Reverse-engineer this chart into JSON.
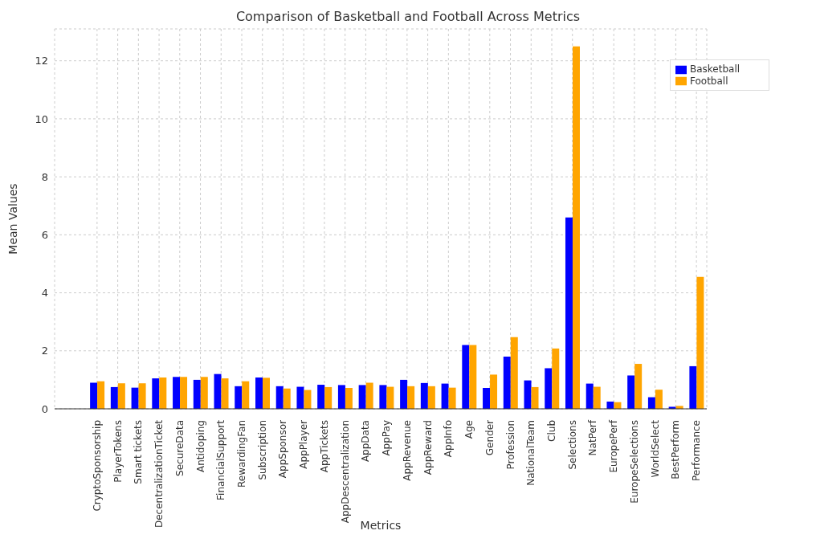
{
  "chart_data": {
    "type": "bar",
    "title": "Comparison of Basketball and Football Across Metrics",
    "xlabel": "Metrics",
    "ylabel": "Mean Values",
    "categories": [
      "CryptoSponsorship",
      "PlayerTokens",
      "Smart tickets",
      "DecentralizationTicket",
      "SecureData",
      "Antidoping",
      "FinancialSupport",
      "RewardingFan",
      "Subscription",
      "AppSponsor",
      "AppPlayer",
      "AppTickets",
      "AppDescentralization",
      "AppData",
      "AppPay",
      "AppRevenue",
      "AppReward",
      "AppInfo",
      "Age",
      "Gender",
      "Profession",
      "NationalTeam",
      "Club",
      "Selections",
      "NatPerf",
      "EuropePerf",
      "EuropeSelections",
      "WorldSelect",
      "BestPerform",
      "Performance"
    ],
    "series": [
      {
        "name": "Basketball",
        "color": "#0000ff",
        "values": [
          0.9,
          0.75,
          0.73,
          1.05,
          1.1,
          1.0,
          1.2,
          0.78,
          1.08,
          0.78,
          0.76,
          0.83,
          0.82,
          0.82,
          0.82,
          1.0,
          0.89,
          0.87,
          2.2,
          0.72,
          1.8,
          0.98,
          1.4,
          6.6,
          0.87,
          0.25,
          1.15,
          0.4,
          0.07,
          1.47
        ]
      },
      {
        "name": "Football",
        "color": "#ffa500",
        "values": [
          0.95,
          0.88,
          0.88,
          1.08,
          1.1,
          1.1,
          1.05,
          0.95,
          1.07,
          0.7,
          0.65,
          0.75,
          0.72,
          0.9,
          0.76,
          0.78,
          0.78,
          0.73,
          2.2,
          1.18,
          2.47,
          0.75,
          2.08,
          12.5,
          0.76,
          0.23,
          1.55,
          0.66,
          0.1,
          4.55
        ]
      }
    ],
    "ylim": [
      0,
      13.1
    ],
    "yticks": [
      0,
      2,
      4,
      6,
      8,
      10,
      12
    ],
    "grid": true,
    "legend": "top right"
  }
}
